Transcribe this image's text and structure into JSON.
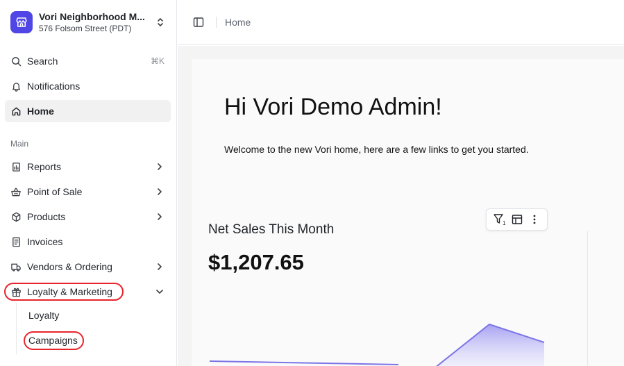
{
  "store": {
    "name": "Vori Neighborhood M...",
    "address": "576 Folsom Street (PDT)"
  },
  "nav": {
    "search": {
      "label": "Search",
      "shortcut": "⌘K",
      "icon": "search-icon"
    },
    "notifications": {
      "label": "Notifications",
      "icon": "bell-icon"
    },
    "home": {
      "label": "Home",
      "icon": "home-icon"
    },
    "section_main": "Main",
    "items": [
      {
        "label": "Reports",
        "icon": "report-icon"
      },
      {
        "label": "Point of Sale",
        "icon": "basket-icon"
      },
      {
        "label": "Products",
        "icon": "box-icon"
      },
      {
        "label": "Invoices",
        "icon": "invoice-icon"
      },
      {
        "label": "Vendors & Ordering",
        "icon": "truck-icon"
      },
      {
        "label": "Loyalty & Marketing",
        "icon": "gift-icon"
      }
    ],
    "sub_items": [
      {
        "label": "Loyalty"
      },
      {
        "label": "Campaigns"
      }
    ]
  },
  "breadcrumb": {
    "current": "Home"
  },
  "main": {
    "greeting": "Hi Vori Demo Admin!",
    "welcome": "Welcome to the new Vori home, here are a few links to get you started."
  },
  "widget": {
    "title": "Net Sales This Month",
    "value": "$1,207.65",
    "filter_badge": "1"
  },
  "colors": {
    "brand": "#4f46e5",
    "highlight": "#e8242a",
    "chart_line": "#7c74e8"
  }
}
